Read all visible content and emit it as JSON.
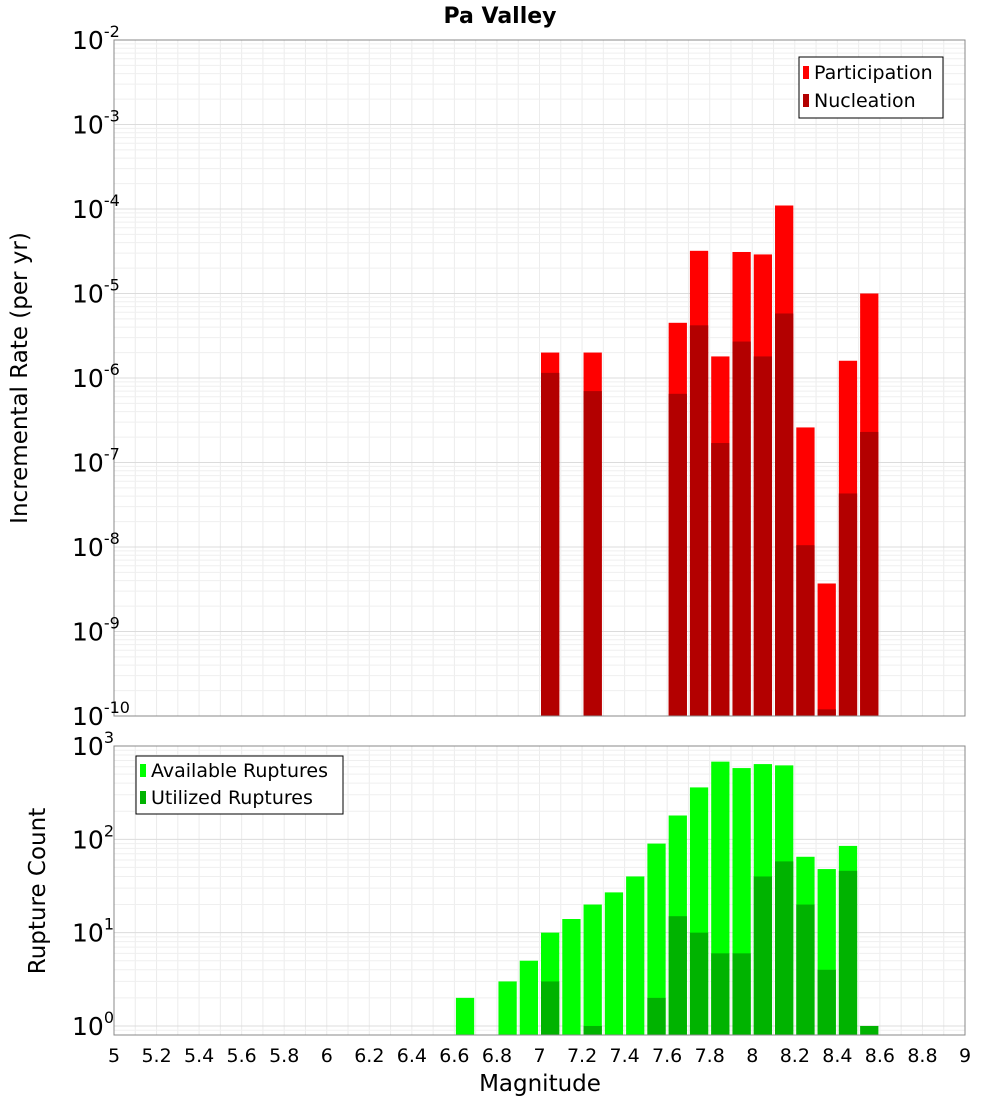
{
  "chart_data": [
    {
      "type": "bar",
      "title": "Pa Valley",
      "xlabel": "",
      "ylabel": "Incremental Rate (per yr)",
      "y_scale": "log",
      "ylim": [
        1e-10,
        0.01
      ],
      "xlim": [
        5,
        9
      ],
      "bar_width": 0.1,
      "grid": true,
      "legend_position": "top-right",
      "y_tick_labels": [
        {
          "base": "10",
          "exp": "-10"
        },
        {
          "base": "10",
          "exp": "-9"
        },
        {
          "base": "10",
          "exp": "-8"
        },
        {
          "base": "10",
          "exp": "-7"
        },
        {
          "base": "10",
          "exp": "-6"
        },
        {
          "base": "10",
          "exp": "-5"
        },
        {
          "base": "10",
          "exp": "-4"
        },
        {
          "base": "10",
          "exp": "-3"
        },
        {
          "base": "10",
          "exp": "-2"
        }
      ],
      "series": [
        {
          "name": "Participation",
          "color": "#ff0000",
          "x": [
            7.05,
            7.25,
            7.65,
            7.75,
            7.85,
            7.95,
            8.05,
            8.15,
            8.25,
            8.35,
            8.45,
            8.55
          ],
          "values": [
            2e-06,
            2e-06,
            4.5e-06,
            3.2e-05,
            1.8e-06,
            3.1e-05,
            2.9e-05,
            0.00011,
            2.6e-07,
            3.7e-09,
            1.6e-06,
            1e-05
          ]
        },
        {
          "name": "Nucleation",
          "color": "#b30000",
          "x": [
            7.05,
            7.25,
            7.65,
            7.75,
            7.85,
            7.95,
            8.05,
            8.15,
            8.25,
            8.35,
            8.45,
            8.55
          ],
          "values": [
            1.15e-06,
            7e-07,
            6.5e-07,
            4.2e-06,
            1.7e-07,
            2.7e-06,
            1.8e-06,
            5.8e-06,
            1.05e-08,
            1.2e-10,
            4.3e-08,
            2.3e-07
          ]
        }
      ]
    },
    {
      "type": "bar",
      "xlabel": "Magnitude",
      "ylabel": "Rupture Count",
      "y_scale": "log",
      "ylim": [
        0.8,
        1000
      ],
      "xlim": [
        5,
        9
      ],
      "bar_width": 0.1,
      "grid": true,
      "legend_position": "top-left",
      "x_tick_labels": [
        "5",
        "5.2",
        "5.4",
        "5.6",
        "5.8",
        "6",
        "6.2",
        "6.4",
        "6.6",
        "6.8",
        "7",
        "7.2",
        "7.4",
        "7.6",
        "7.8",
        "8",
        "8.2",
        "8.4",
        "8.6",
        "8.8",
        "9"
      ],
      "y_tick_labels": [
        {
          "base": "10",
          "exp": "0"
        },
        {
          "base": "10",
          "exp": "1"
        },
        {
          "base": "10",
          "exp": "2"
        },
        {
          "base": "10",
          "exp": "3"
        }
      ],
      "series": [
        {
          "name": "Available Ruptures",
          "color": "#00ff00",
          "x": [
            6.65,
            6.85,
            6.95,
            7.05,
            7.15,
            7.25,
            7.35,
            7.45,
            7.55,
            7.65,
            7.75,
            7.85,
            7.95,
            8.05,
            8.15,
            8.25,
            8.35,
            8.45
          ],
          "values": [
            2,
            3,
            5,
            10,
            14,
            20,
            27,
            40,
            90,
            180,
            360,
            680,
            580,
            640,
            620,
            65,
            48,
            85
          ]
        },
        {
          "name": "Utilized Ruptures",
          "color": "#00b300",
          "x": [
            7.05,
            7.25,
            7.55,
            7.65,
            7.75,
            7.85,
            7.95,
            8.05,
            8.15,
            8.25,
            8.35,
            8.45,
            8.55
          ],
          "values": [
            3,
            1,
            2,
            15,
            10,
            6,
            6,
            40,
            58,
            20,
            4,
            46,
            1
          ]
        }
      ]
    }
  ]
}
